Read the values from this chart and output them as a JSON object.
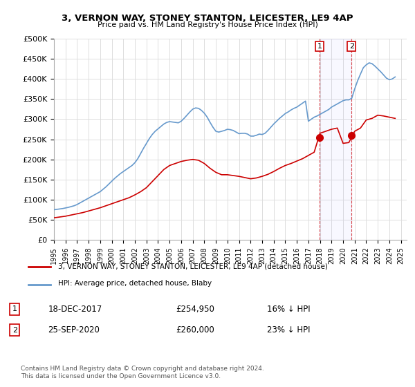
{
  "title": "3, VERNON WAY, STONEY STANTON, LEICESTER, LE9 4AP",
  "subtitle": "Price paid vs. HM Land Registry's House Price Index (HPI)",
  "ylabel_ticks": [
    "£0",
    "£50K",
    "£100K",
    "£150K",
    "£200K",
    "£250K",
    "£300K",
    "£350K",
    "£400K",
    "£450K",
    "£500K"
  ],
  "ylim": [
    0,
    500000
  ],
  "ytick_values": [
    0,
    50000,
    100000,
    150000,
    200000,
    250000,
    300000,
    350000,
    400000,
    450000,
    500000
  ],
  "xmin": 1995.0,
  "xmax": 2025.5,
  "red_line_color": "#cc0000",
  "blue_line_color": "#6699cc",
  "marker_color": "#cc0000",
  "purchase1_x": 2017.96,
  "purchase1_y": 254950,
  "purchase2_x": 2020.73,
  "purchase2_y": 260000,
  "legend_label_red": "3, VERNON WAY, STONEY STANTON, LEICESTER, LE9 4AP (detached house)",
  "legend_label_blue": "HPI: Average price, detached house, Blaby",
  "annotation1_num": "1",
  "annotation1_date": "18-DEC-2017",
  "annotation1_price": "£254,950",
  "annotation1_hpi": "16% ↓ HPI",
  "annotation2_num": "2",
  "annotation2_date": "25-SEP-2020",
  "annotation2_price": "£260,000",
  "annotation2_hpi": "23% ↓ HPI",
  "footer": "Contains HM Land Registry data © Crown copyright and database right 2024.\nThis data is licensed under the Open Government Licence v3.0.",
  "background_color": "#ffffff",
  "grid_color": "#dddddd",
  "hpi_years": [
    1995.0,
    1995.25,
    1995.5,
    1995.75,
    1996.0,
    1996.25,
    1996.5,
    1996.75,
    1997.0,
    1997.25,
    1997.5,
    1997.75,
    1998.0,
    1998.25,
    1998.5,
    1998.75,
    1999.0,
    1999.25,
    1999.5,
    1999.75,
    2000.0,
    2000.25,
    2000.5,
    2000.75,
    2001.0,
    2001.25,
    2001.5,
    2001.75,
    2002.0,
    2002.25,
    2002.5,
    2002.75,
    2003.0,
    2003.25,
    2003.5,
    2003.75,
    2004.0,
    2004.25,
    2004.5,
    2004.75,
    2005.0,
    2005.25,
    2005.5,
    2005.75,
    2006.0,
    2006.25,
    2006.5,
    2006.75,
    2007.0,
    2007.25,
    2007.5,
    2007.75,
    2008.0,
    2008.25,
    2008.5,
    2008.75,
    2009.0,
    2009.25,
    2009.5,
    2009.75,
    2010.0,
    2010.25,
    2010.5,
    2010.75,
    2011.0,
    2011.25,
    2011.5,
    2011.75,
    2012.0,
    2012.25,
    2012.5,
    2012.75,
    2013.0,
    2013.25,
    2013.5,
    2013.75,
    2014.0,
    2014.25,
    2014.5,
    2014.75,
    2015.0,
    2015.25,
    2015.5,
    2015.75,
    2016.0,
    2016.25,
    2016.5,
    2016.75,
    2017.0,
    2017.25,
    2017.5,
    2017.75,
    2018.0,
    2018.25,
    2018.5,
    2018.75,
    2019.0,
    2019.25,
    2019.5,
    2019.75,
    2020.0,
    2020.25,
    2020.5,
    2020.75,
    2021.0,
    2021.25,
    2021.5,
    2021.75,
    2022.0,
    2022.25,
    2022.5,
    2022.75,
    2023.0,
    2023.25,
    2023.5,
    2023.75,
    2024.0,
    2024.25,
    2024.5
  ],
  "hpi_values": [
    75000,
    76000,
    77000,
    78000,
    79500,
    81000,
    83000,
    85000,
    88000,
    92000,
    96000,
    100000,
    104000,
    108000,
    112000,
    116000,
    120000,
    126000,
    132000,
    139000,
    146000,
    153000,
    159000,
    165000,
    170000,
    175000,
    180000,
    185000,
    192000,
    202000,
    215000,
    228000,
    240000,
    252000,
    262000,
    270000,
    276000,
    282000,
    288000,
    292000,
    294000,
    293000,
    292000,
    291000,
    295000,
    302000,
    310000,
    318000,
    325000,
    328000,
    327000,
    322000,
    315000,
    305000,
    292000,
    280000,
    270000,
    268000,
    270000,
    272000,
    275000,
    274000,
    272000,
    268000,
    264000,
    265000,
    265000,
    263000,
    258000,
    258000,
    260000,
    263000,
    262000,
    265000,
    272000,
    280000,
    288000,
    295000,
    302000,
    308000,
    314000,
    318000,
    323000,
    327000,
    330000,
    335000,
    340000,
    345000,
    295000,
    300000,
    305000,
    308000,
    312000,
    316000,
    320000,
    324000,
    330000,
    334000,
    338000,
    342000,
    346000,
    348000,
    348000,
    352000,
    375000,
    395000,
    412000,
    428000,
    435000,
    440000,
    438000,
    432000,
    425000,
    418000,
    410000,
    402000,
    398000,
    400000,
    405000
  ],
  "red_years": [
    1995.0,
    1995.5,
    1996.0,
    1996.5,
    1997.0,
    1997.5,
    1998.0,
    1998.5,
    1999.0,
    1999.5,
    2000.0,
    2000.5,
    2001.0,
    2001.5,
    2002.0,
    2002.5,
    2003.0,
    2003.5,
    2004.0,
    2004.5,
    2005.0,
    2005.5,
    2006.0,
    2006.5,
    2007.0,
    2007.5,
    2008.0,
    2008.5,
    2009.0,
    2009.5,
    2010.0,
    2010.5,
    2011.0,
    2011.5,
    2012.0,
    2012.5,
    2013.0,
    2013.5,
    2014.0,
    2014.5,
    2015.0,
    2015.5,
    2016.0,
    2016.5,
    2017.0,
    2017.5,
    2018.0,
    2018.5,
    2019.0,
    2019.5,
    2020.0,
    2020.5,
    2021.0,
    2021.5,
    2022.0,
    2022.5,
    2023.0,
    2023.5,
    2024.0,
    2024.5
  ],
  "red_values": [
    55000,
    57000,
    59000,
    62000,
    65000,
    68000,
    72000,
    76000,
    80000,
    85000,
    90000,
    95000,
    100000,
    105000,
    112000,
    120000,
    130000,
    145000,
    160000,
    175000,
    185000,
    190000,
    195000,
    198000,
    200000,
    198000,
    190000,
    178000,
    168000,
    162000,
    162000,
    160000,
    158000,
    155000,
    152000,
    154000,
    158000,
    163000,
    170000,
    178000,
    185000,
    190000,
    196000,
    202000,
    210000,
    218000,
    265000,
    270000,
    275000,
    278000,
    240000,
    242000,
    270000,
    278000,
    298000,
    302000,
    310000,
    308000,
    305000,
    302000
  ]
}
